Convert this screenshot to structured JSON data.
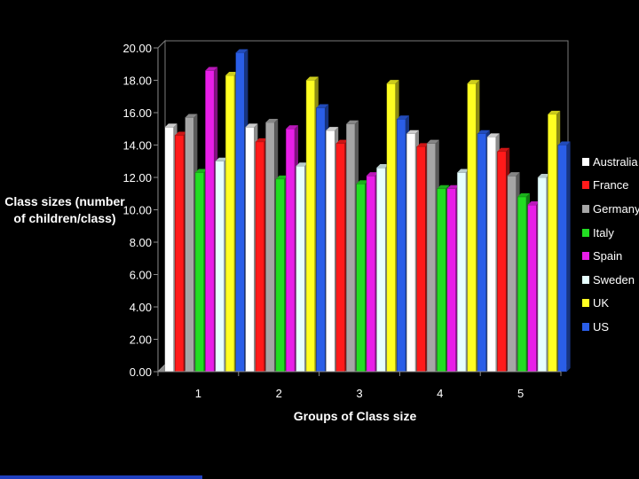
{
  "chart_data": {
    "type": "bar",
    "xlabel": "Groups of Class size",
    "ylabel": "Class sizes (number of children/class)",
    "ylim": [
      0,
      20
    ],
    "y_ticks": [
      "0.00",
      "2.00",
      "4.00",
      "6.00",
      "8.00",
      "10.00",
      "12.00",
      "14.00",
      "16.00",
      "18.00",
      "20.00"
    ],
    "categories": [
      "1",
      "2",
      "3",
      "4",
      "5"
    ],
    "legend_position": "right",
    "series": [
      {
        "name": "Australia",
        "color": "#ffffff",
        "values": [
          15.1,
          15.1,
          14.9,
          14.7,
          14.5
        ]
      },
      {
        "name": "France",
        "color": "#ff1a1a",
        "values": [
          14.6,
          14.2,
          14.1,
          13.9,
          13.6
        ]
      },
      {
        "name": "Germany",
        "color": "#a6a6a6",
        "values": [
          15.7,
          15.4,
          15.3,
          14.1,
          12.1
        ]
      },
      {
        "name": "Italy",
        "color": "#22dd22",
        "values": [
          12.3,
          11.9,
          11.6,
          11.3,
          10.8
        ]
      },
      {
        "name": "Spain",
        "color": "#e81ee8",
        "values": [
          18.6,
          15.0,
          12.1,
          11.3,
          10.3
        ]
      },
      {
        "name": "Sweden",
        "color": "#e6ffff",
        "values": [
          13.0,
          12.7,
          12.6,
          12.3,
          12.0
        ]
      },
      {
        "name": "UK",
        "color": "#ffff22",
        "values": [
          18.3,
          18.0,
          17.8,
          17.8,
          15.9
        ]
      },
      {
        "name": "US",
        "color": "#2a5ee8",
        "values": [
          19.7,
          16.3,
          15.6,
          14.7,
          14.0
        ]
      }
    ]
  }
}
